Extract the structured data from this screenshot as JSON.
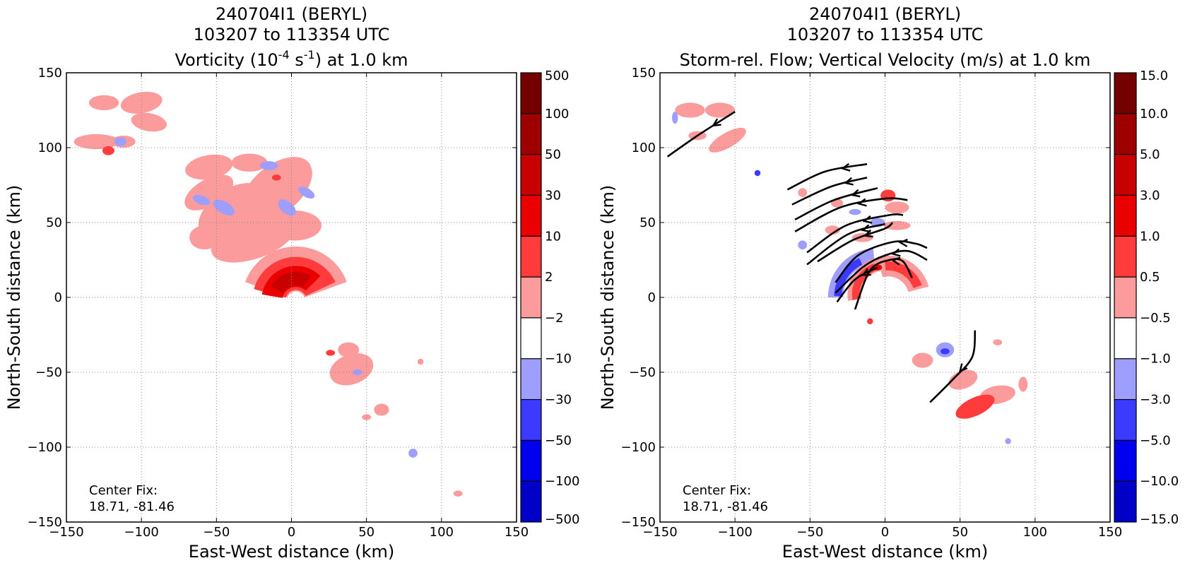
{
  "colors": {
    "positive": [
      "#fb9b9b",
      "#ff3b3b",
      "#eb0000",
      "#c80000",
      "#9e0000",
      "#740000"
    ],
    "negative": [
      "#9e9eff",
      "#3b3bff",
      "#0000ee",
      "#0000c8",
      "#00009e",
      "#000074"
    ],
    "neutral": "#ffffff",
    "grid": "#888888",
    "streamline": "#000000"
  },
  "chart_data": [
    {
      "type": "heatmap",
      "title_lines": [
        "240704I1 (BERYL)",
        "103207 to 113354 UTC"
      ],
      "title_line3_pre": "Vorticity (10",
      "title_line3_sup1": "-4",
      "title_line3_mid": " s",
      "title_line3_sup2": "-1",
      "title_line3_post": ") at 1.0 km",
      "xlabel": "East-West distance (km)",
      "ylabel": "North-South distance (km)",
      "xlim": [
        -150,
        150
      ],
      "ylim": [
        -150,
        150
      ],
      "xticks": [
        "−150",
        "−100",
        "−50",
        "0",
        "50",
        "100",
        "150"
      ],
      "yticks": [
        "150",
        "100",
        "50",
        "0",
        "−50",
        "−100",
        "−150"
      ],
      "grid": true,
      "annotation_lines": [
        "Center Fix:",
        "18.71, -81.46"
      ],
      "colorbar_ticks": [
        "500",
        "100",
        "50",
        "30",
        "10",
        "2",
        "−2",
        "−10",
        "−30",
        "−50",
        "−100",
        "−500"
      ],
      "features": [
        {
          "level": 1,
          "x": -125,
          "y": 130,
          "rx": 10,
          "ry": 5,
          "rot": 0
        },
        {
          "level": 1,
          "x": -100,
          "y": 130,
          "rx": 14,
          "ry": 7,
          "rot": -10
        },
        {
          "level": 1,
          "x": -95,
          "y": 117,
          "rx": 12,
          "ry": 6,
          "rot": 10
        },
        {
          "level": 1,
          "x": -130,
          "y": 104,
          "rx": 15,
          "ry": 5,
          "rot": 0
        },
        {
          "level": 1,
          "x": -112,
          "y": 104,
          "rx": 8,
          "ry": 4,
          "rot": 0
        },
        {
          "level": 2,
          "x": -122,
          "y": 98,
          "rx": 4,
          "ry": 3,
          "rot": 0
        },
        {
          "level": -1,
          "x": -114,
          "y": 104,
          "rx": 4,
          "ry": 3,
          "rot": 0
        },
        {
          "level": 1,
          "x": -55,
          "y": 87,
          "rx": 16,
          "ry": 8,
          "rot": -10
        },
        {
          "level": 1,
          "x": -28,
          "y": 90,
          "rx": 12,
          "ry": 6,
          "rot": 0
        },
        {
          "level": 1,
          "x": -10,
          "y": 72,
          "rx": 28,
          "ry": 16,
          "rot": -40
        },
        {
          "level": 1,
          "x": -40,
          "y": 58,
          "rx": 25,
          "ry": 14,
          "rot": -35
        },
        {
          "level": 1,
          "x": -55,
          "y": 70,
          "rx": 18,
          "ry": 9,
          "rot": -30
        },
        {
          "level": 1,
          "x": -25,
          "y": 40,
          "rx": 30,
          "ry": 14,
          "rot": -20
        },
        {
          "level": 1,
          "x": 2,
          "y": 48,
          "rx": 18,
          "ry": 10,
          "rot": 0
        },
        {
          "level": 1,
          "x": -58,
          "y": 40,
          "rx": 10,
          "ry": 8,
          "rot": 0
        },
        {
          "level": -1,
          "x": -60,
          "y": 65,
          "rx": 6,
          "ry": 3,
          "rot": 20
        },
        {
          "level": -1,
          "x": -45,
          "y": 60,
          "rx": 8,
          "ry": 4,
          "rot": 30
        },
        {
          "level": -1,
          "x": -3,
          "y": 60,
          "rx": 7,
          "ry": 4,
          "rot": 40
        },
        {
          "level": -1,
          "x": 10,
          "y": 70,
          "rx": 6,
          "ry": 3,
          "rot": 30
        },
        {
          "level": -1,
          "x": -15,
          "y": 88,
          "rx": 6,
          "ry": 3,
          "rot": 0
        },
        {
          "level": 2,
          "x": -10,
          "y": 80,
          "rx": 3,
          "ry": 2,
          "rot": 0
        },
        {
          "level": 1,
          "x": 40,
          "y": -48,
          "rx": 15,
          "ry": 10,
          "rot": -20
        },
        {
          "level": 1,
          "x": 38,
          "y": -35,
          "rx": 7,
          "ry": 5,
          "rot": 0
        },
        {
          "level": 2,
          "x": 26,
          "y": -37,
          "rx": 3,
          "ry": 2,
          "rot": 0
        },
        {
          "level": -1,
          "x": 44,
          "y": -50,
          "rx": 3,
          "ry": 2,
          "rot": 0
        },
        {
          "level": 1,
          "x": 60,
          "y": -75,
          "rx": 5,
          "ry": 4,
          "rot": 0
        },
        {
          "level": 1,
          "x": 50,
          "y": -80,
          "rx": 3,
          "ry": 2,
          "rot": 0
        },
        {
          "level": 1,
          "x": 86,
          "y": -43,
          "rx": 2,
          "ry": 2,
          "rot": 0
        },
        {
          "level": 1,
          "x": 111,
          "y": -131,
          "rx": 3,
          "ry": 2,
          "rot": 0
        },
        {
          "level": -1,
          "x": 81,
          "y": -104,
          "rx": 3,
          "ry": 3,
          "rot": 0
        }
      ],
      "arcs": [
        {
          "level": 1,
          "cx": 3,
          "cy": -2,
          "r_out": 36,
          "r_in": 6,
          "a0": 20,
          "a1": 160
        },
        {
          "level": 2,
          "cx": 3,
          "cy": -2,
          "r_out": 29,
          "r_in": 7,
          "a0": 25,
          "a1": 165
        },
        {
          "level": 3,
          "cx": 3,
          "cy": -2,
          "r_out": 23,
          "r_in": 9,
          "a0": 45,
          "a1": 170
        },
        {
          "level": 4,
          "cx": 3,
          "cy": -2,
          "r_out": 19,
          "r_in": 10,
          "a0": 60,
          "a1": 150
        }
      ],
      "streamlines": []
    },
    {
      "type": "heatmap",
      "title_lines": [
        "240704I1 (BERYL)",
        "103207 to 113354 UTC"
      ],
      "title_line3_pre": "Storm-rel. Flow; Vertical Velocity (m/s) at 1.0 km",
      "title_line3_sup1": "",
      "title_line3_mid": "",
      "title_line3_sup2": "",
      "title_line3_post": "",
      "xlabel": "East-West distance (km)",
      "ylabel": "North-South distance (km)",
      "xlim": [
        -150,
        150
      ],
      "ylim": [
        -150,
        150
      ],
      "xticks": [
        "−150",
        "−100",
        "−50",
        "0",
        "50",
        "100",
        "150"
      ],
      "yticks": [
        "150",
        "100",
        "50",
        "0",
        "−50",
        "−100",
        "−150"
      ],
      "grid": true,
      "annotation_lines": [
        "Center Fix:",
        "18.71, -81.46"
      ],
      "colorbar_ticks": [
        "15.0",
        "10.0",
        "5.0",
        "3.0",
        "1.0",
        "0.5",
        "−0.5",
        "−1.0",
        "−3.0",
        "−5.0",
        "−10.0",
        "−15.0"
      ],
      "features": [
        {
          "level": 1,
          "x": -130,
          "y": 125,
          "rx": 10,
          "ry": 5,
          "rot": 0
        },
        {
          "level": 1,
          "x": -110,
          "y": 125,
          "rx": 10,
          "ry": 5,
          "rot": 0
        },
        {
          "level": 1,
          "x": -105,
          "y": 105,
          "rx": 14,
          "ry": 5,
          "rot": -30
        },
        {
          "level": 1,
          "x": -125,
          "y": 108,
          "rx": 6,
          "ry": 3,
          "rot": 0
        },
        {
          "level": -1,
          "x": -140,
          "y": 120,
          "rx": 2,
          "ry": 4,
          "rot": 0
        },
        {
          "level": -2,
          "x": -85,
          "y": 83,
          "rx": 2,
          "ry": 2,
          "rot": 0
        },
        {
          "level": 1,
          "x": -55,
          "y": 70,
          "rx": 3,
          "ry": 3,
          "rot": 0
        },
        {
          "level": 1,
          "x": -32,
          "y": 63,
          "rx": 4,
          "ry": 3,
          "rot": 0
        },
        {
          "level": 1,
          "x": -35,
          "y": 45,
          "rx": 5,
          "ry": 3,
          "rot": 0
        },
        {
          "level": 2,
          "x": 2,
          "y": 68,
          "rx": 5,
          "ry": 4,
          "rot": 0
        },
        {
          "level": 1,
          "x": 8,
          "y": 60,
          "rx": 8,
          "ry": 4,
          "rot": 0
        },
        {
          "level": 1,
          "x": 8,
          "y": 48,
          "rx": 9,
          "ry": 3,
          "rot": 0
        },
        {
          "level": -1,
          "x": -5,
          "y": 50,
          "rx": 5,
          "ry": 3,
          "rot": 0
        },
        {
          "level": -1,
          "x": -20,
          "y": 57,
          "rx": 4,
          "ry": 2,
          "rot": 0
        },
        {
          "level": -1,
          "x": -55,
          "y": 35,
          "rx": 3,
          "ry": 3,
          "rot": 0
        },
        {
          "level": 1,
          "x": -15,
          "y": 40,
          "rx": 7,
          "ry": 3,
          "rot": 0
        },
        {
          "level": -1,
          "x": 40,
          "y": -35,
          "rx": 6,
          "ry": 5,
          "rot": 0
        },
        {
          "level": -2,
          "x": 40,
          "y": -36,
          "rx": 3,
          "ry": 2,
          "rot": 0
        },
        {
          "level": 1,
          "x": 25,
          "y": -42,
          "rx": 7,
          "ry": 5,
          "rot": 0
        },
        {
          "level": 1,
          "x": 52,
          "y": -55,
          "rx": 10,
          "ry": 6,
          "rot": -20
        },
        {
          "level": 1,
          "x": 75,
          "y": -65,
          "rx": 12,
          "ry": 6,
          "rot": -10
        },
        {
          "level": 1,
          "x": 92,
          "y": -58,
          "rx": 3,
          "ry": 5,
          "rot": 0
        },
        {
          "level": 2,
          "x": 60,
          "y": -73,
          "rx": 14,
          "ry": 6,
          "rot": -25
        },
        {
          "level": 1,
          "x": 75,
          "y": -30,
          "rx": 3,
          "ry": 2,
          "rot": 0
        },
        {
          "level": -1,
          "x": 82,
          "y": -96,
          "rx": 2,
          "ry": 2,
          "rot": 0
        },
        {
          "level": 2,
          "x": -10,
          "y": -16,
          "rx": 2,
          "ry": 2,
          "rot": 0
        },
        {
          "level": 3,
          "x": -5,
          "y": 20,
          "rx": 3,
          "ry": 2,
          "rot": 0
        }
      ],
      "arcs": [
        {
          "level": -1,
          "cx": -5,
          "cy": 0,
          "r_out": 33,
          "r_in": 23,
          "a0": 95,
          "a1": 180
        },
        {
          "level": -2,
          "cx": -5,
          "cy": 0,
          "r_out": 29,
          "r_in": 24,
          "a0": 115,
          "a1": 178
        },
        {
          "level": 1,
          "cx": 2,
          "cy": 0,
          "r_out": 28,
          "r_in": 14,
          "a0": 15,
          "a1": 105
        },
        {
          "level": 2,
          "cx": 2,
          "cy": 0,
          "r_out": 24,
          "r_in": 18,
          "a0": 20,
          "a1": 95
        },
        {
          "level": 1,
          "cx": 0,
          "cy": 2,
          "r_out": 25,
          "r_in": 16,
          "a0": 100,
          "a1": 190
        },
        {
          "level": 2,
          "cx": 0,
          "cy": 2,
          "r_out": 22,
          "r_in": 17,
          "a0": 110,
          "a1": 190
        }
      ],
      "streamlines": [
        [
          [
            -145,
            94
          ],
          [
            -125,
            108
          ],
          [
            -100,
            124
          ]
        ],
        [
          [
            -65,
            72
          ],
          [
            -40,
            84
          ],
          [
            -12,
            89
          ]
        ],
        [
          [
            -62,
            62
          ],
          [
            -36,
            74
          ],
          [
            -12,
            80
          ]
        ],
        [
          [
            -60,
            52
          ],
          [
            -34,
            65
          ],
          [
            -5,
            73
          ]
        ],
        [
          [
            -60,
            44
          ],
          [
            -30,
            60
          ],
          [
            0,
            66
          ],
          [
            15,
            65
          ]
        ],
        [
          [
            -52,
            30
          ],
          [
            -26,
            48
          ],
          [
            3,
            55
          ],
          [
            12,
            55
          ]
        ],
        [
          [
            -52,
            22
          ],
          [
            -25,
            42
          ],
          [
            0,
            49
          ]
        ],
        [
          [
            -45,
            24
          ],
          [
            -22,
            38
          ],
          [
            0,
            46
          ],
          [
            5,
            50
          ]
        ],
        [
          [
            -33,
            10
          ],
          [
            -18,
            28
          ],
          [
            5,
            37
          ],
          [
            20,
            36
          ],
          [
            28,
            33
          ]
        ],
        [
          [
            -33,
            3
          ],
          [
            -15,
            20
          ],
          [
            0,
            28
          ],
          [
            15,
            31
          ],
          [
            28,
            25
          ]
        ],
        [
          [
            -20,
            -8
          ],
          [
            -10,
            18
          ],
          [
            3,
            25
          ],
          [
            12,
            24
          ],
          [
            18,
            13
          ]
        ],
        [
          [
            -32,
            -3
          ],
          [
            -20,
            12
          ],
          [
            -5,
            20
          ]
        ],
        [
          [
            30,
            -70
          ],
          [
            45,
            -55
          ],
          [
            58,
            -40
          ],
          [
            60,
            -22
          ]
        ]
      ]
    }
  ]
}
